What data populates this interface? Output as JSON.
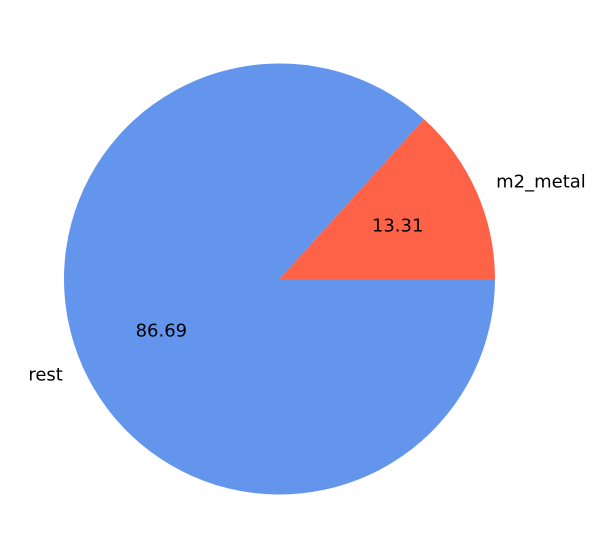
{
  "chart_data": {
    "type": "pie",
    "title": "",
    "slices": [
      {
        "label": "m2_metal",
        "value": 13.31,
        "pct_text": "13.31",
        "color": "#ff6347"
      },
      {
        "label": "rest",
        "value": 86.69,
        "pct_text": "86.69",
        "color": "#6495ed"
      }
    ],
    "start_angle_deg": 0,
    "direction": "counterclockwise",
    "legend": "none"
  }
}
